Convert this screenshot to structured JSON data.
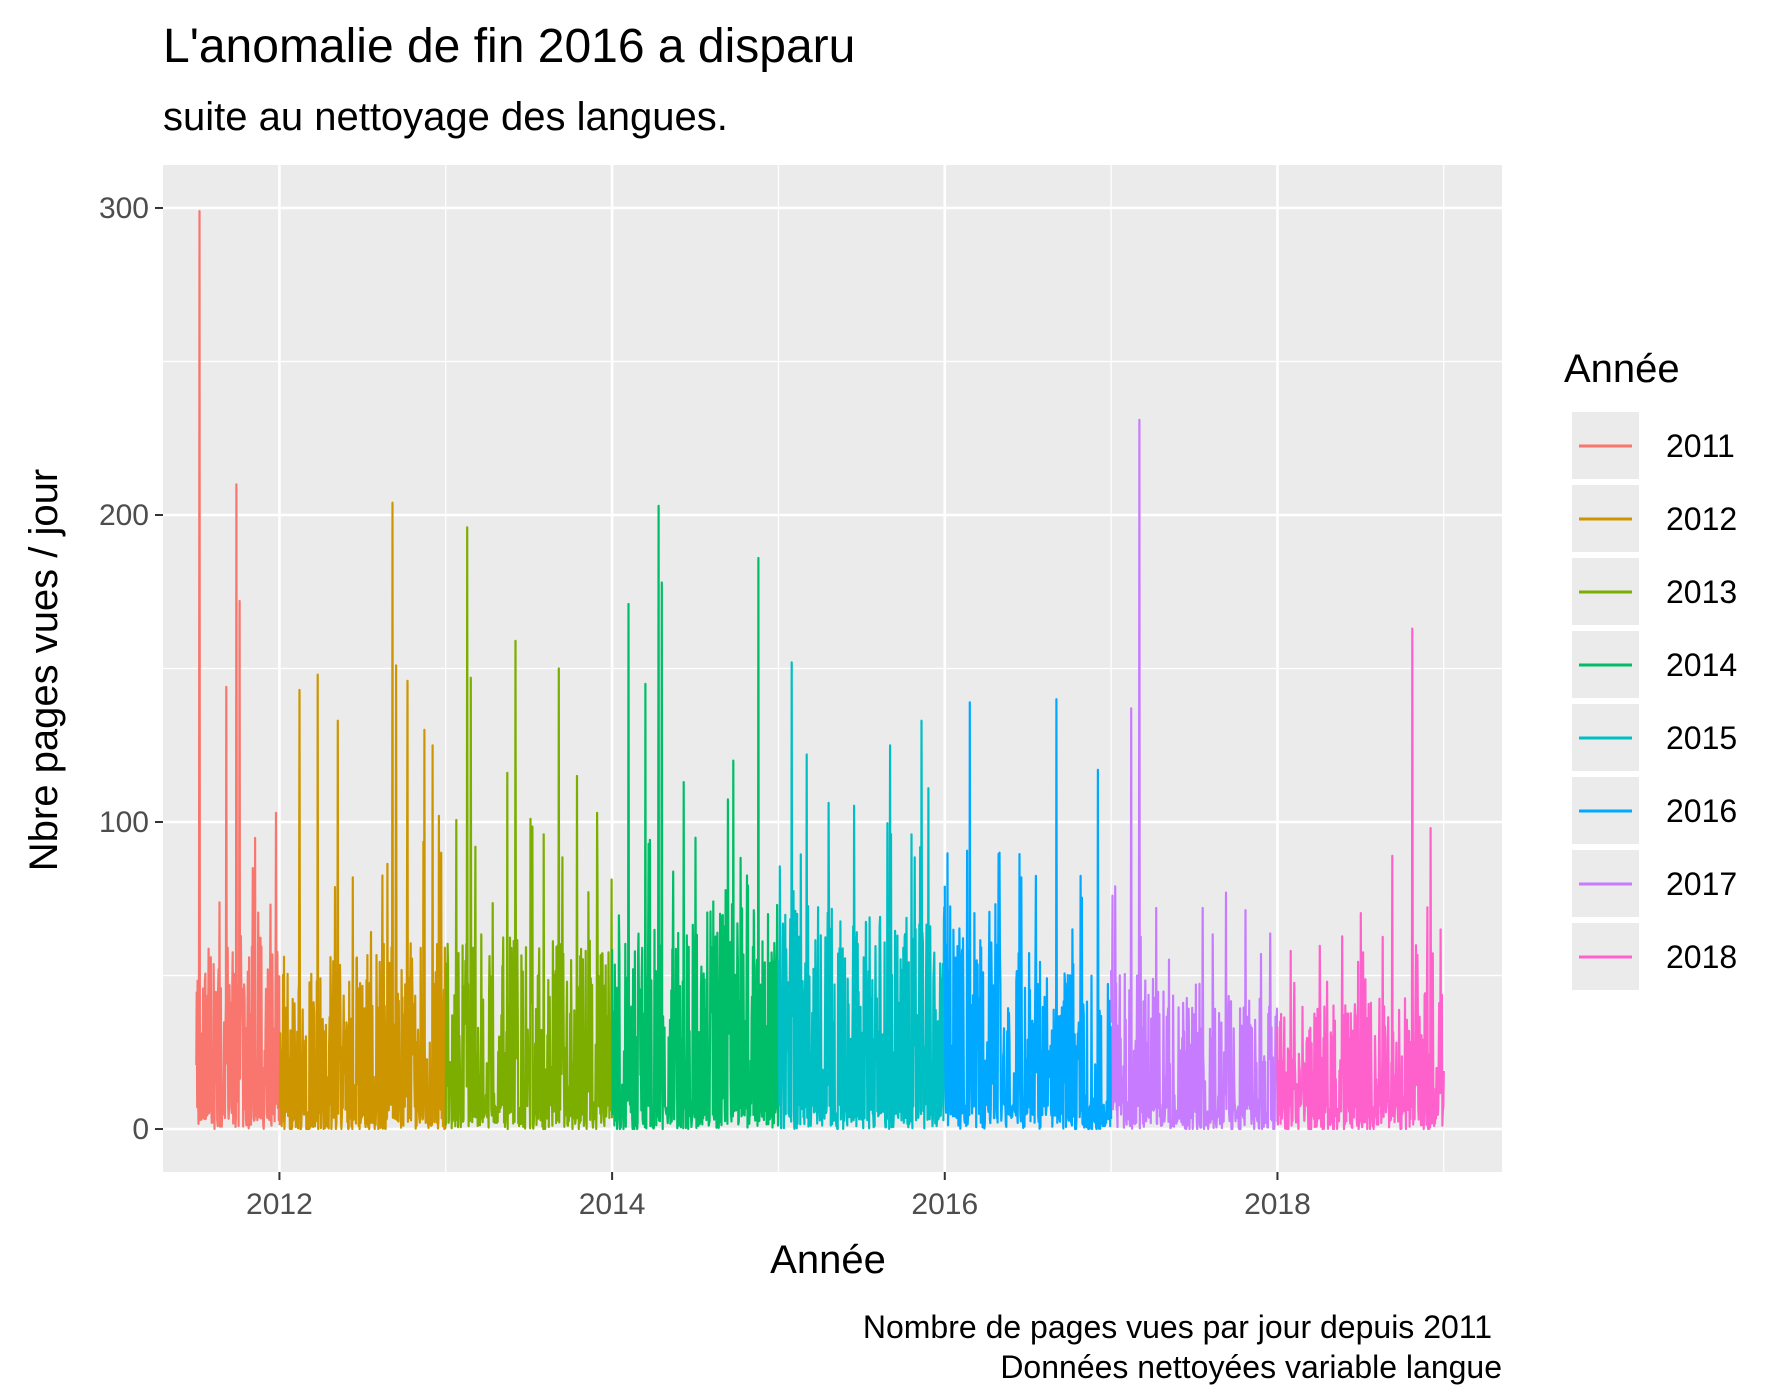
{
  "chart_data": {
    "type": "line",
    "title": "L'anomalie de fin 2016 a disparu",
    "subtitle": "suite au nettoyage des langues.",
    "xlabel": "Année",
    "ylabel": "Nbre pages vues / jour",
    "caption_lines": [
      "Nombre de pages vues par jour depuis 2011",
      "Données nettoyées variable langue"
    ],
    "xlim": [
      2011.3,
      2019.35
    ],
    "ylim": [
      -14,
      314
    ],
    "x_ticks": [
      {
        "value": 2012,
        "label": "2012"
      },
      {
        "value": 2014,
        "label": "2014"
      },
      {
        "value": 2016,
        "label": "2016"
      },
      {
        "value": 2018,
        "label": "2018"
      }
    ],
    "y_ticks": [
      {
        "value": 0,
        "label": "0"
      },
      {
        "value": 100,
        "label": "100"
      },
      {
        "value": 200,
        "label": "200"
      },
      {
        "value": 300,
        "label": "300"
      }
    ],
    "grid": true,
    "legend": {
      "title": "Année",
      "placement": "right"
    },
    "series": [
      {
        "name": "2011",
        "color": "#F8766D",
        "x_start": 2011.5,
        "x_end": 2012.0,
        "baseline": [
          30,
          30
        ],
        "amp": 45,
        "peaks": [
          [
            2011.52,
            299
          ],
          [
            2011.57,
            30
          ],
          [
            2011.68,
            144
          ],
          [
            2011.74,
            210
          ],
          [
            2011.76,
            172
          ],
          [
            2011.84,
            85
          ],
          [
            2011.98,
            103
          ]
        ]
      },
      {
        "name": "2012",
        "color": "#CD9600",
        "x_start": 2012.0,
        "x_end": 2013.0,
        "baseline": [
          22,
          28
        ],
        "amp": 45,
        "peaks": [
          [
            2012.12,
            143
          ],
          [
            2012.23,
            148
          ],
          [
            2012.35,
            133
          ],
          [
            2012.44,
            82
          ],
          [
            2012.68,
            204
          ],
          [
            2012.7,
            151
          ],
          [
            2012.77,
            146
          ],
          [
            2012.87,
            130
          ],
          [
            2012.92,
            125
          ],
          [
            2012.96,
            102
          ]
        ]
      },
      {
        "name": "2013",
        "color": "#7CAE00",
        "x_start": 2013.0,
        "x_end": 2014.0,
        "baseline": [
          30,
          25
        ],
        "amp": 45,
        "peaks": [
          [
            2013.13,
            196
          ],
          [
            2013.15,
            147
          ],
          [
            2013.37,
            116
          ],
          [
            2013.42,
            159
          ],
          [
            2013.51,
            101
          ],
          [
            2013.68,
            150
          ],
          [
            2013.79,
            115
          ],
          [
            2013.91,
            103
          ]
        ]
      },
      {
        "name": "2014",
        "color": "#00BE67",
        "x_start": 2014.0,
        "x_end": 2015.0,
        "baseline": [
          22,
          40
        ],
        "amp": 50,
        "peaks": [
          [
            2014.1,
            171
          ],
          [
            2014.2,
            145
          ],
          [
            2014.28,
            203
          ],
          [
            2014.3,
            178
          ],
          [
            2014.43,
            113
          ],
          [
            2014.73,
            120
          ],
          [
            2014.88,
            186
          ]
        ]
      },
      {
        "name": "2015",
        "color": "#00BFC4",
        "x_start": 2015.0,
        "x_end": 2016.0,
        "baseline": [
          35,
          30
        ],
        "amp": 50,
        "peaks": [
          [
            2015.08,
            152
          ],
          [
            2015.17,
            122
          ],
          [
            2015.67,
            125
          ],
          [
            2015.8,
            96
          ],
          [
            2015.86,
            133
          ],
          [
            2015.9,
            111
          ]
        ]
      },
      {
        "name": "2016",
        "color": "#00A9FF",
        "x_start": 2016.0,
        "x_end": 2017.0,
        "baseline": [
          35,
          20
        ],
        "amp": 40,
        "peaks": [
          [
            2016.15,
            139
          ],
          [
            2016.33,
            90
          ],
          [
            2016.46,
            82
          ],
          [
            2016.67,
            140
          ],
          [
            2016.92,
            117
          ]
        ]
      },
      {
        "name": "2017",
        "color": "#C77CFF",
        "x_start": 2017.0,
        "x_end": 2018.0,
        "baseline": [
          25,
          15
        ],
        "amp": 35,
        "peaks": [
          [
            2017.12,
            137
          ],
          [
            2017.17,
            231
          ],
          [
            2017.27,
            72
          ],
          [
            2017.55,
            72
          ],
          [
            2017.69,
            77
          ],
          [
            2017.9,
            57
          ]
        ]
      },
      {
        "name": "2018",
        "color": "#FF61CC",
        "x_start": 2018.0,
        "x_end": 2019.0,
        "baseline": [
          12,
          18
        ],
        "amp": 35,
        "peaks": [
          [
            2018.08,
            58
          ],
          [
            2018.3,
            48
          ],
          [
            2018.69,
            89
          ],
          [
            2018.81,
            163
          ],
          [
            2018.92,
            98
          ],
          [
            2018.98,
            65
          ]
        ]
      }
    ]
  }
}
